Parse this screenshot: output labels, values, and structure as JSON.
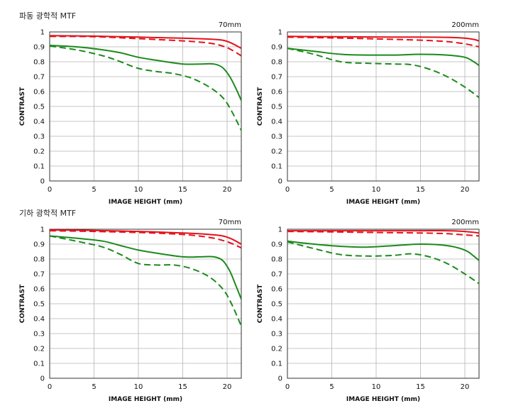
{
  "sections": [
    {
      "title": "파동 광학적 MTF"
    },
    {
      "title": "기하 광학적 MTF"
    }
  ],
  "colors": {
    "red": "#e3121b",
    "green": "#1c8a1c",
    "grid": "#b4b4b4",
    "frame": "#333333"
  },
  "chart_data": [
    {
      "type": "line",
      "section": "파동 광학적 MTF",
      "focal_label": "70mm",
      "xlabel": "IMAGE HEIGHT (mm)",
      "ylabel": "CONTRAST",
      "xlim": [
        0,
        21.6
      ],
      "ylim": [
        0,
        1
      ],
      "x_ticks": [
        "0",
        "5",
        "10",
        "15",
        "20"
      ],
      "y_ticks": [
        "0",
        "0.1",
        "0.2",
        "0.3",
        "0.4",
        "0.5",
        "0.6",
        "0.7",
        "0.8",
        "0.9",
        "1"
      ],
      "grid": true,
      "series": [
        {
          "color": "red",
          "style": "solid",
          "points": [
            [
              0,
              0.975
            ],
            [
              5,
              0.972
            ],
            [
              10,
              0.965
            ],
            [
              15,
              0.958
            ],
            [
              18,
              0.952
            ],
            [
              19.5,
              0.945
            ],
            [
              20.5,
              0.925
            ],
            [
              21.6,
              0.89
            ]
          ]
        },
        {
          "color": "red",
          "style": "dashed",
          "points": [
            [
              0,
              0.97
            ],
            [
              5,
              0.968
            ],
            [
              10,
              0.955
            ],
            [
              15,
              0.94
            ],
            [
              18,
              0.925
            ],
            [
              19.5,
              0.905
            ],
            [
              20.5,
              0.88
            ],
            [
              21.6,
              0.84
            ]
          ]
        },
        {
          "color": "green",
          "style": "solid",
          "points": [
            [
              0,
              0.91
            ],
            [
              3,
              0.9
            ],
            [
              6,
              0.88
            ],
            [
              8,
              0.86
            ],
            [
              10,
              0.83
            ],
            [
              12,
              0.81
            ],
            [
              15,
              0.785
            ],
            [
              17,
              0.785
            ],
            [
              18.5,
              0.785
            ],
            [
              19.5,
              0.76
            ],
            [
              20.3,
              0.7
            ],
            [
              21,
              0.62
            ],
            [
              21.6,
              0.54
            ]
          ]
        },
        {
          "color": "green",
          "style": "dashed",
          "points": [
            [
              0,
              0.905
            ],
            [
              3,
              0.88
            ],
            [
              6,
              0.84
            ],
            [
              8,
              0.8
            ],
            [
              10,
              0.755
            ],
            [
              12,
              0.735
            ],
            [
              14,
              0.72
            ],
            [
              16,
              0.69
            ],
            [
              18,
              0.63
            ],
            [
              19.5,
              0.56
            ],
            [
              20.5,
              0.47
            ],
            [
              21.6,
              0.34
            ]
          ]
        }
      ]
    },
    {
      "type": "line",
      "section": "파동 광학적 MTF",
      "focal_label": "200mm",
      "xlabel": "IMAGE HEIGHT (mm)",
      "ylabel": "CONTRAST",
      "xlim": [
        0,
        21.6
      ],
      "ylim": [
        0,
        1
      ],
      "x_ticks": [
        "0",
        "5",
        "10",
        "15",
        "20"
      ],
      "y_ticks": [
        "0",
        "0.1",
        "0.2",
        "0.3",
        "0.4",
        "0.5",
        "0.6",
        "0.7",
        "0.8",
        "0.9",
        "1"
      ],
      "grid": true,
      "series": [
        {
          "color": "red",
          "style": "solid",
          "points": [
            [
              0,
              0.97
            ],
            [
              5,
              0.968
            ],
            [
              10,
              0.966
            ],
            [
              15,
              0.965
            ],
            [
              18,
              0.964
            ],
            [
              20,
              0.958
            ],
            [
              21,
              0.95
            ],
            [
              21.6,
              0.94
            ]
          ]
        },
        {
          "color": "red",
          "style": "dashed",
          "points": [
            [
              0,
              0.965
            ],
            [
              5,
              0.96
            ],
            [
              10,
              0.953
            ],
            [
              15,
              0.945
            ],
            [
              18,
              0.935
            ],
            [
              20,
              0.92
            ],
            [
              21.6,
              0.9
            ]
          ]
        },
        {
          "color": "green",
          "style": "solid",
          "points": [
            [
              0,
              0.89
            ],
            [
              3,
              0.87
            ],
            [
              6,
              0.85
            ],
            [
              9,
              0.845
            ],
            [
              12,
              0.845
            ],
            [
              15,
              0.85
            ],
            [
              18,
              0.845
            ],
            [
              20,
              0.83
            ],
            [
              21,
              0.8
            ],
            [
              21.6,
              0.775
            ]
          ]
        },
        {
          "color": "green",
          "style": "dashed",
          "points": [
            [
              0,
              0.89
            ],
            [
              3,
              0.85
            ],
            [
              6,
              0.8
            ],
            [
              9,
              0.79
            ],
            [
              12,
              0.785
            ],
            [
              14,
              0.78
            ],
            [
              16,
              0.75
            ],
            [
              18,
              0.7
            ],
            [
              20,
              0.63
            ],
            [
              21.6,
              0.56
            ]
          ]
        }
      ]
    },
    {
      "type": "line",
      "section": "기하 광학적 MTF",
      "focal_label": "70mm",
      "xlabel": "IMAGE HEIGHT (mm)",
      "ylabel": "CONTRAST",
      "xlim": [
        0,
        21.6
      ],
      "ylim": [
        0,
        1
      ],
      "x_ticks": [
        "0",
        "5",
        "10",
        "15",
        "20"
      ],
      "y_ticks": [
        "0",
        "0.1",
        "0.2",
        "0.3",
        "0.4",
        "0.5",
        "0.6",
        "0.7",
        "0.8",
        "0.9",
        "1"
      ],
      "grid": true,
      "series": [
        {
          "color": "red",
          "style": "solid",
          "points": [
            [
              0,
              0.995
            ],
            [
              5,
              0.992
            ],
            [
              10,
              0.985
            ],
            [
              15,
              0.975
            ],
            [
              18,
              0.965
            ],
            [
              19.5,
              0.955
            ],
            [
              20.5,
              0.935
            ],
            [
              21.6,
              0.9
            ]
          ]
        },
        {
          "color": "red",
          "style": "dashed",
          "points": [
            [
              0,
              0.99
            ],
            [
              5,
              0.985
            ],
            [
              10,
              0.978
            ],
            [
              15,
              0.965
            ],
            [
              18,
              0.945
            ],
            [
              19.5,
              0.925
            ],
            [
              20.5,
              0.905
            ],
            [
              21.6,
              0.875
            ]
          ]
        },
        {
          "color": "green",
          "style": "solid",
          "points": [
            [
              0,
              0.955
            ],
            [
              3,
              0.94
            ],
            [
              6,
              0.92
            ],
            [
              8,
              0.89
            ],
            [
              10,
              0.86
            ],
            [
              12,
              0.84
            ],
            [
              15,
              0.815
            ],
            [
              17,
              0.815
            ],
            [
              18.5,
              0.815
            ],
            [
              19.5,
              0.79
            ],
            [
              20.3,
              0.72
            ],
            [
              21,
              0.62
            ],
            [
              21.6,
              0.53
            ]
          ]
        },
        {
          "color": "green",
          "style": "dashed",
          "points": [
            [
              0,
              0.955
            ],
            [
              3,
              0.92
            ],
            [
              6,
              0.88
            ],
            [
              8,
              0.83
            ],
            [
              10,
              0.77
            ],
            [
              12,
              0.76
            ],
            [
              14,
              0.76
            ],
            [
              16,
              0.735
            ],
            [
              18,
              0.68
            ],
            [
              19.5,
              0.6
            ],
            [
              20.5,
              0.5
            ],
            [
              21.6,
              0.35
            ]
          ]
        }
      ]
    },
    {
      "type": "line",
      "section": "기하 광학적 MTF",
      "focal_label": "200mm",
      "xlabel": "IMAGE HEIGHT (mm)",
      "ylabel": "CONTRAST",
      "xlim": [
        0,
        21.6
      ],
      "ylim": [
        0,
        1
      ],
      "x_ticks": [
        "0",
        "5",
        "10",
        "15",
        "20"
      ],
      "y_ticks": [
        "0",
        "0.1",
        "0.2",
        "0.3",
        "0.4",
        "0.5",
        "0.6",
        "0.7",
        "0.8",
        "0.9",
        "1"
      ],
      "grid": true,
      "series": [
        {
          "color": "red",
          "style": "solid",
          "points": [
            [
              0,
              0.99
            ],
            [
              5,
              0.99
            ],
            [
              10,
              0.99
            ],
            [
              15,
              0.99
            ],
            [
              18,
              0.99
            ],
            [
              20,
              0.985
            ],
            [
              21.6,
              0.975
            ]
          ]
        },
        {
          "color": "red",
          "style": "dashed",
          "points": [
            [
              0,
              0.985
            ],
            [
              5,
              0.982
            ],
            [
              10,
              0.978
            ],
            [
              15,
              0.975
            ],
            [
              18,
              0.97
            ],
            [
              20,
              0.962
            ],
            [
              21.6,
              0.955
            ]
          ]
        },
        {
          "color": "green",
          "style": "solid",
          "points": [
            [
              0,
              0.92
            ],
            [
              3,
              0.9
            ],
            [
              6,
              0.885
            ],
            [
              9,
              0.88
            ],
            [
              12,
              0.89
            ],
            [
              15,
              0.9
            ],
            [
              18,
              0.89
            ],
            [
              20,
              0.86
            ],
            [
              21,
              0.82
            ],
            [
              21.6,
              0.79
            ]
          ]
        },
        {
          "color": "green",
          "style": "dashed",
          "points": [
            [
              0,
              0.915
            ],
            [
              3,
              0.87
            ],
            [
              6,
              0.83
            ],
            [
              9,
              0.82
            ],
            [
              12,
              0.825
            ],
            [
              14,
              0.835
            ],
            [
              16,
              0.815
            ],
            [
              18,
              0.77
            ],
            [
              20,
              0.7
            ],
            [
              21.6,
              0.635
            ]
          ]
        }
      ]
    }
  ]
}
